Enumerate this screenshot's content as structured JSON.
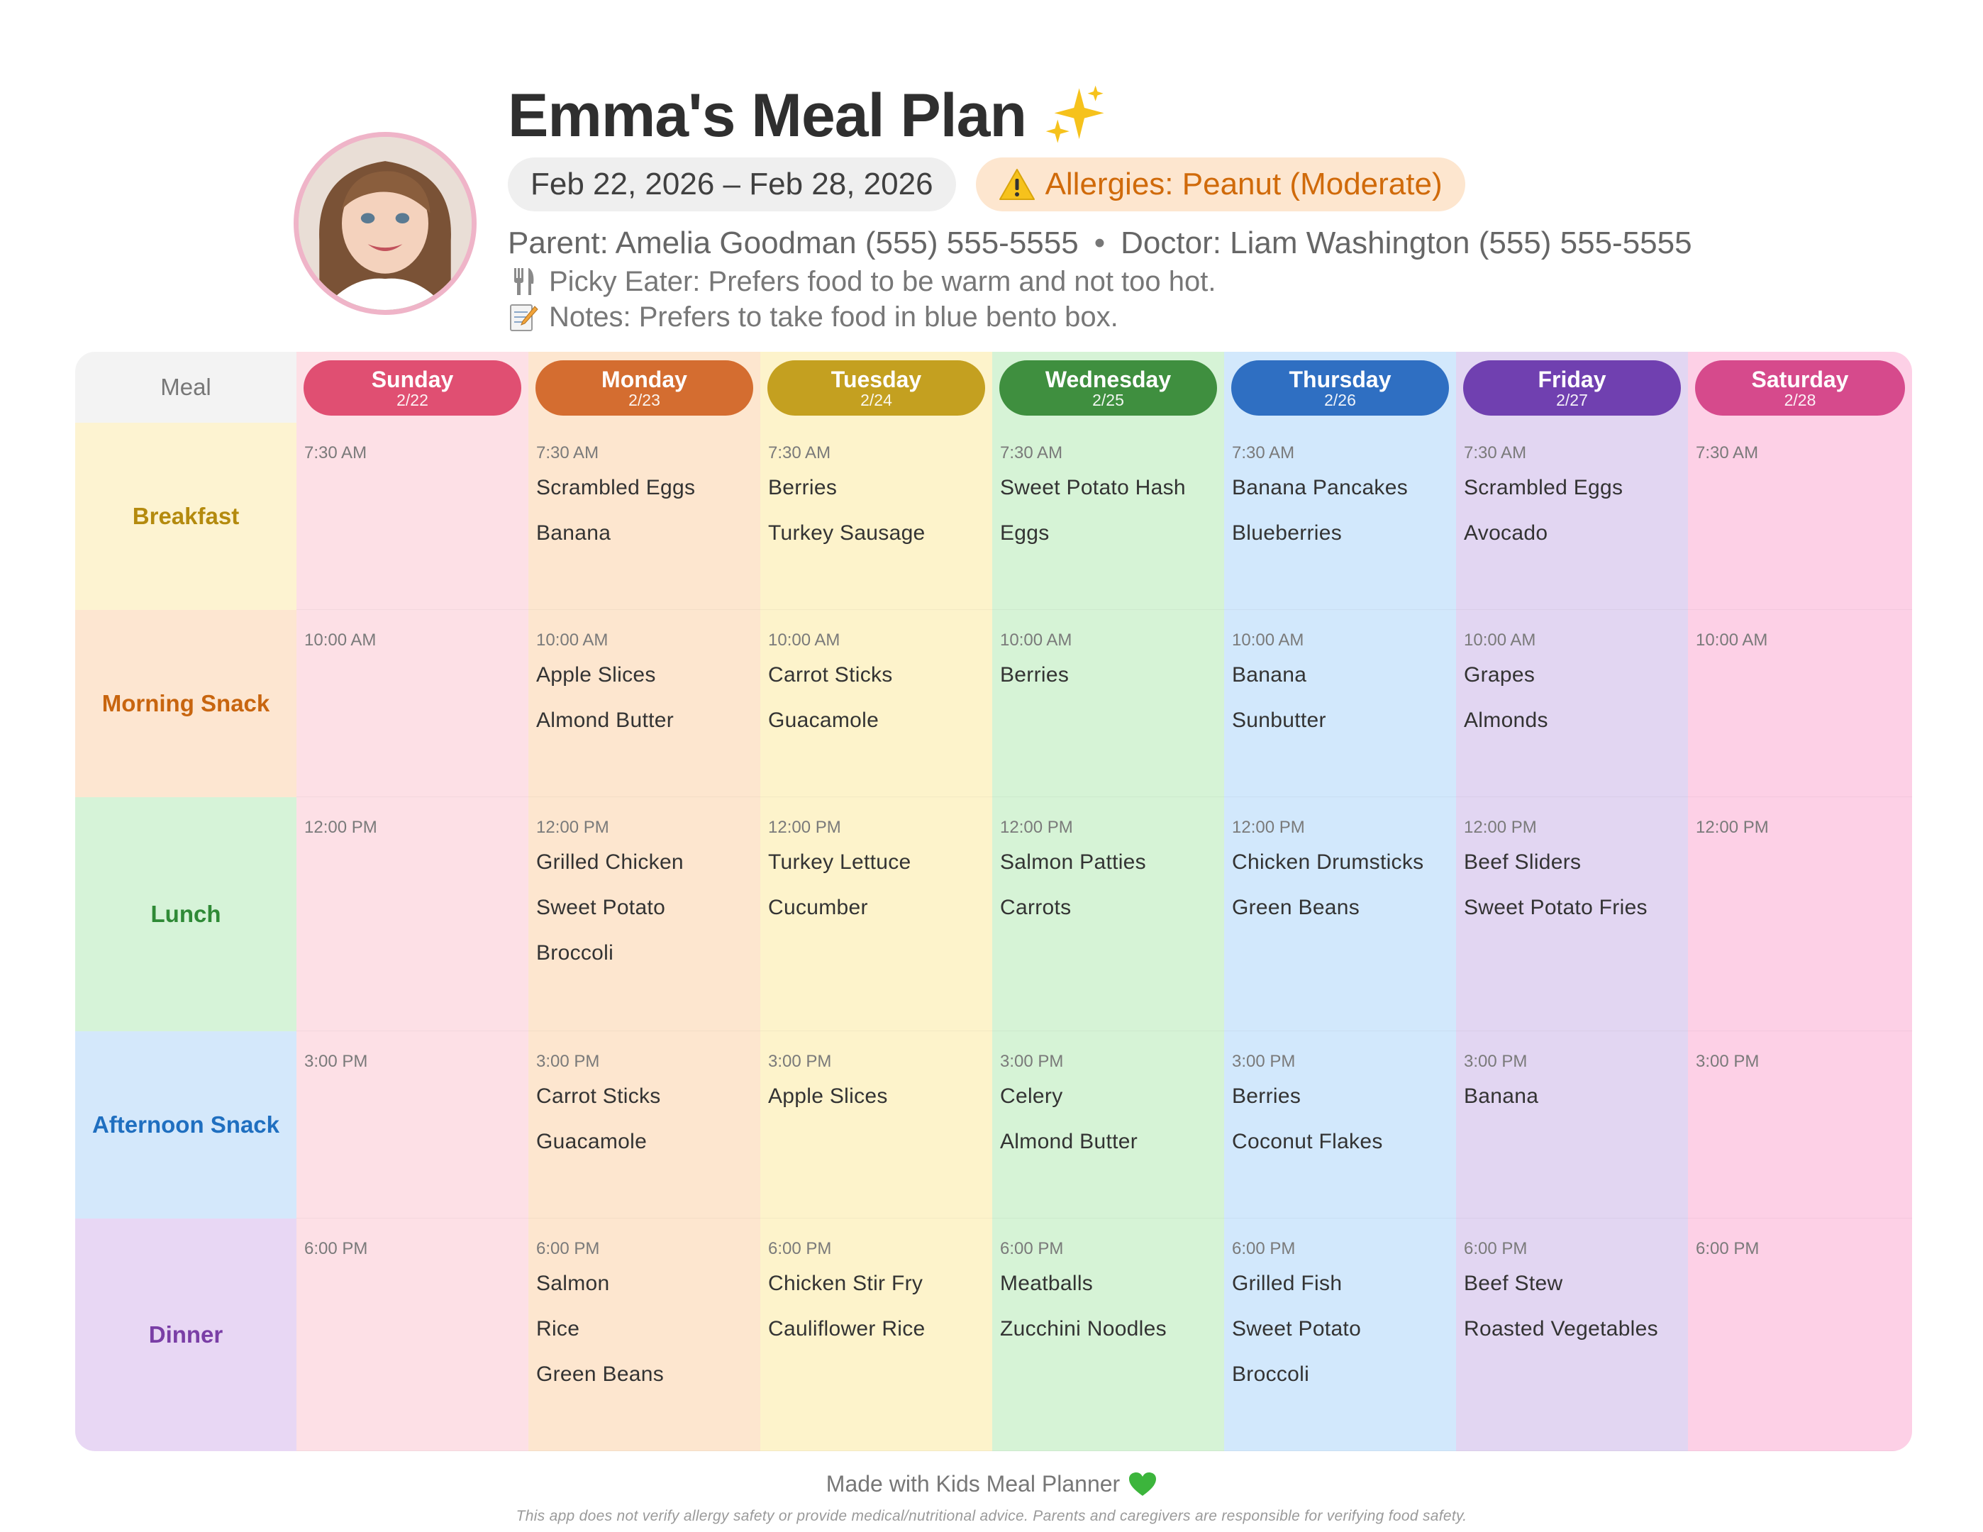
{
  "header": {
    "title": "Emma's Meal Plan",
    "date_range": "Feb 22, 2026 – Feb 28, 2026",
    "allergy": "Allergies: Peanut (Moderate)",
    "parent": "Parent: Amelia Goodman (555) 555-5555",
    "separator": "•",
    "doctor": "Doctor: Liam Washington (555) 555-5555",
    "picky": "Picky Eater: Prefers food to be warm and not too hot.",
    "notes": "Notes: Prefers to take food in blue bento box."
  },
  "grid": {
    "meal_header": "Meal",
    "meals": [
      {
        "label": "Breakfast",
        "color": "#b48a0e",
        "bg": "#fdf3d1"
      },
      {
        "label": "Morning Snack",
        "color": "#c8650f",
        "bg": "#fde6d1"
      },
      {
        "label": "Lunch",
        "color": "#2f8a36",
        "bg": "#d6f3d8"
      },
      {
        "label": "Afternoon Snack",
        "color": "#1f6fc0",
        "bg": "#d4e8fb"
      },
      {
        "label": "Dinner",
        "color": "#7a3ea6",
        "bg": "#e8d7f4"
      }
    ],
    "days": [
      {
        "name": "Sunday",
        "date": "2/22",
        "pill": "#e04f72",
        "bg": "#fde0e6",
        "cells": [
          {
            "time": "7:30 AM",
            "foods": []
          },
          {
            "time": "10:00 AM",
            "foods": []
          },
          {
            "time": "12:00 PM",
            "foods": []
          },
          {
            "time": "3:00 PM",
            "foods": []
          },
          {
            "time": "6:00 PM",
            "foods": []
          }
        ]
      },
      {
        "name": "Monday",
        "date": "2/23",
        "pill": "#d46d30",
        "bg": "#fde6cf",
        "cells": [
          {
            "time": "7:30 AM",
            "foods": [
              "Scrambled Eggs",
              "Banana"
            ]
          },
          {
            "time": "10:00 AM",
            "foods": [
              "Apple Slices",
              "Almond Butter"
            ]
          },
          {
            "time": "12:00 PM",
            "foods": [
              "Grilled Chicken",
              "Sweet Potato",
              "Broccoli"
            ]
          },
          {
            "time": "3:00 PM",
            "foods": [
              "Carrot Sticks",
              "Guacamole"
            ]
          },
          {
            "time": "6:00 PM",
            "foods": [
              "Salmon",
              "Rice",
              "Green Beans"
            ]
          }
        ]
      },
      {
        "name": "Tuesday",
        "date": "2/24",
        "pill": "#c4a020",
        "bg": "#fdf3cb",
        "cells": [
          {
            "time": "7:30 AM",
            "foods": [
              "Berries",
              "Turkey Sausage"
            ]
          },
          {
            "time": "10:00 AM",
            "foods": [
              "Carrot Sticks",
              "Guacamole"
            ]
          },
          {
            "time": "12:00 PM",
            "foods": [
              "Turkey Lettuce",
              "Cucumber"
            ]
          },
          {
            "time": "3:00 PM",
            "foods": [
              "Apple Slices"
            ]
          },
          {
            "time": "6:00 PM",
            "foods": [
              "Chicken Stir Fry",
              "Cauliflower Rice"
            ]
          }
        ]
      },
      {
        "name": "Wednesday",
        "date": "2/25",
        "pill": "#3f8f3f",
        "bg": "#d6f3d6",
        "cells": [
          {
            "time": "7:30 AM",
            "foods": [
              "Sweet Potato Hash",
              "Eggs"
            ]
          },
          {
            "time": "10:00 AM",
            "foods": [
              "Berries"
            ]
          },
          {
            "time": "12:00 PM",
            "foods": [
              "Salmon Patties",
              "Carrots"
            ]
          },
          {
            "time": "3:00 PM",
            "foods": [
              "Celery",
              "Almond Butter"
            ]
          },
          {
            "time": "6:00 PM",
            "foods": [
              "Meatballs",
              "Zucchini Noodles"
            ]
          }
        ]
      },
      {
        "name": "Thursday",
        "date": "2/26",
        "pill": "#2f6fc2",
        "bg": "#d2e8fc",
        "cells": [
          {
            "time": "7:30 AM",
            "foods": [
              "Banana Pancakes",
              "Blueberries"
            ]
          },
          {
            "time": "10:00 AM",
            "foods": [
              "Banana",
              "Sunbutter"
            ]
          },
          {
            "time": "12:00 PM",
            "foods": [
              "Chicken Drumsticks",
              "Green Beans"
            ]
          },
          {
            "time": "3:00 PM",
            "foods": [
              "Berries",
              "Coconut Flakes"
            ]
          },
          {
            "time": "6:00 PM",
            "foods": [
              "Grilled Fish",
              "Sweet Potato",
              "Broccoli"
            ]
          }
        ]
      },
      {
        "name": "Friday",
        "date": "2/27",
        "pill": "#7040b0",
        "bg": "#e2d6f2",
        "cells": [
          {
            "time": "7:30 AM",
            "foods": [
              "Scrambled Eggs",
              "Avocado"
            ]
          },
          {
            "time": "10:00 AM",
            "foods": [
              "Grapes",
              "Almonds"
            ]
          },
          {
            "time": "12:00 PM",
            "foods": [
              "Beef Sliders",
              "Sweet Potato Fries"
            ]
          },
          {
            "time": "3:00 PM",
            "foods": [
              "Banana"
            ]
          },
          {
            "time": "6:00 PM",
            "foods": [
              "Beef Stew",
              "Roasted Vegetables"
            ]
          }
        ]
      },
      {
        "name": "Saturday",
        "date": "2/28",
        "pill": "#d64a8c",
        "bg": "#fdd0e6",
        "cells": [
          {
            "time": "7:30 AM",
            "foods": []
          },
          {
            "time": "10:00 AM",
            "foods": []
          },
          {
            "time": "12:00 PM",
            "foods": []
          },
          {
            "time": "3:00 PM",
            "foods": []
          },
          {
            "time": "6:00 PM",
            "foods": []
          }
        ]
      }
    ]
  },
  "icons": {
    "title": "sparkles-icon",
    "allergy": "warning-icon",
    "picky": "fork-knife-icon",
    "notes": "memo-icon",
    "footer": "green-heart-icon",
    "avatar": "child-photo"
  },
  "footer": {
    "made_with": "Made with Kids Meal Planner",
    "disclaimer": "This app does not verify allergy safety or provide medical/nutritional advice. Parents and caregivers are responsible for verifying food safety."
  }
}
